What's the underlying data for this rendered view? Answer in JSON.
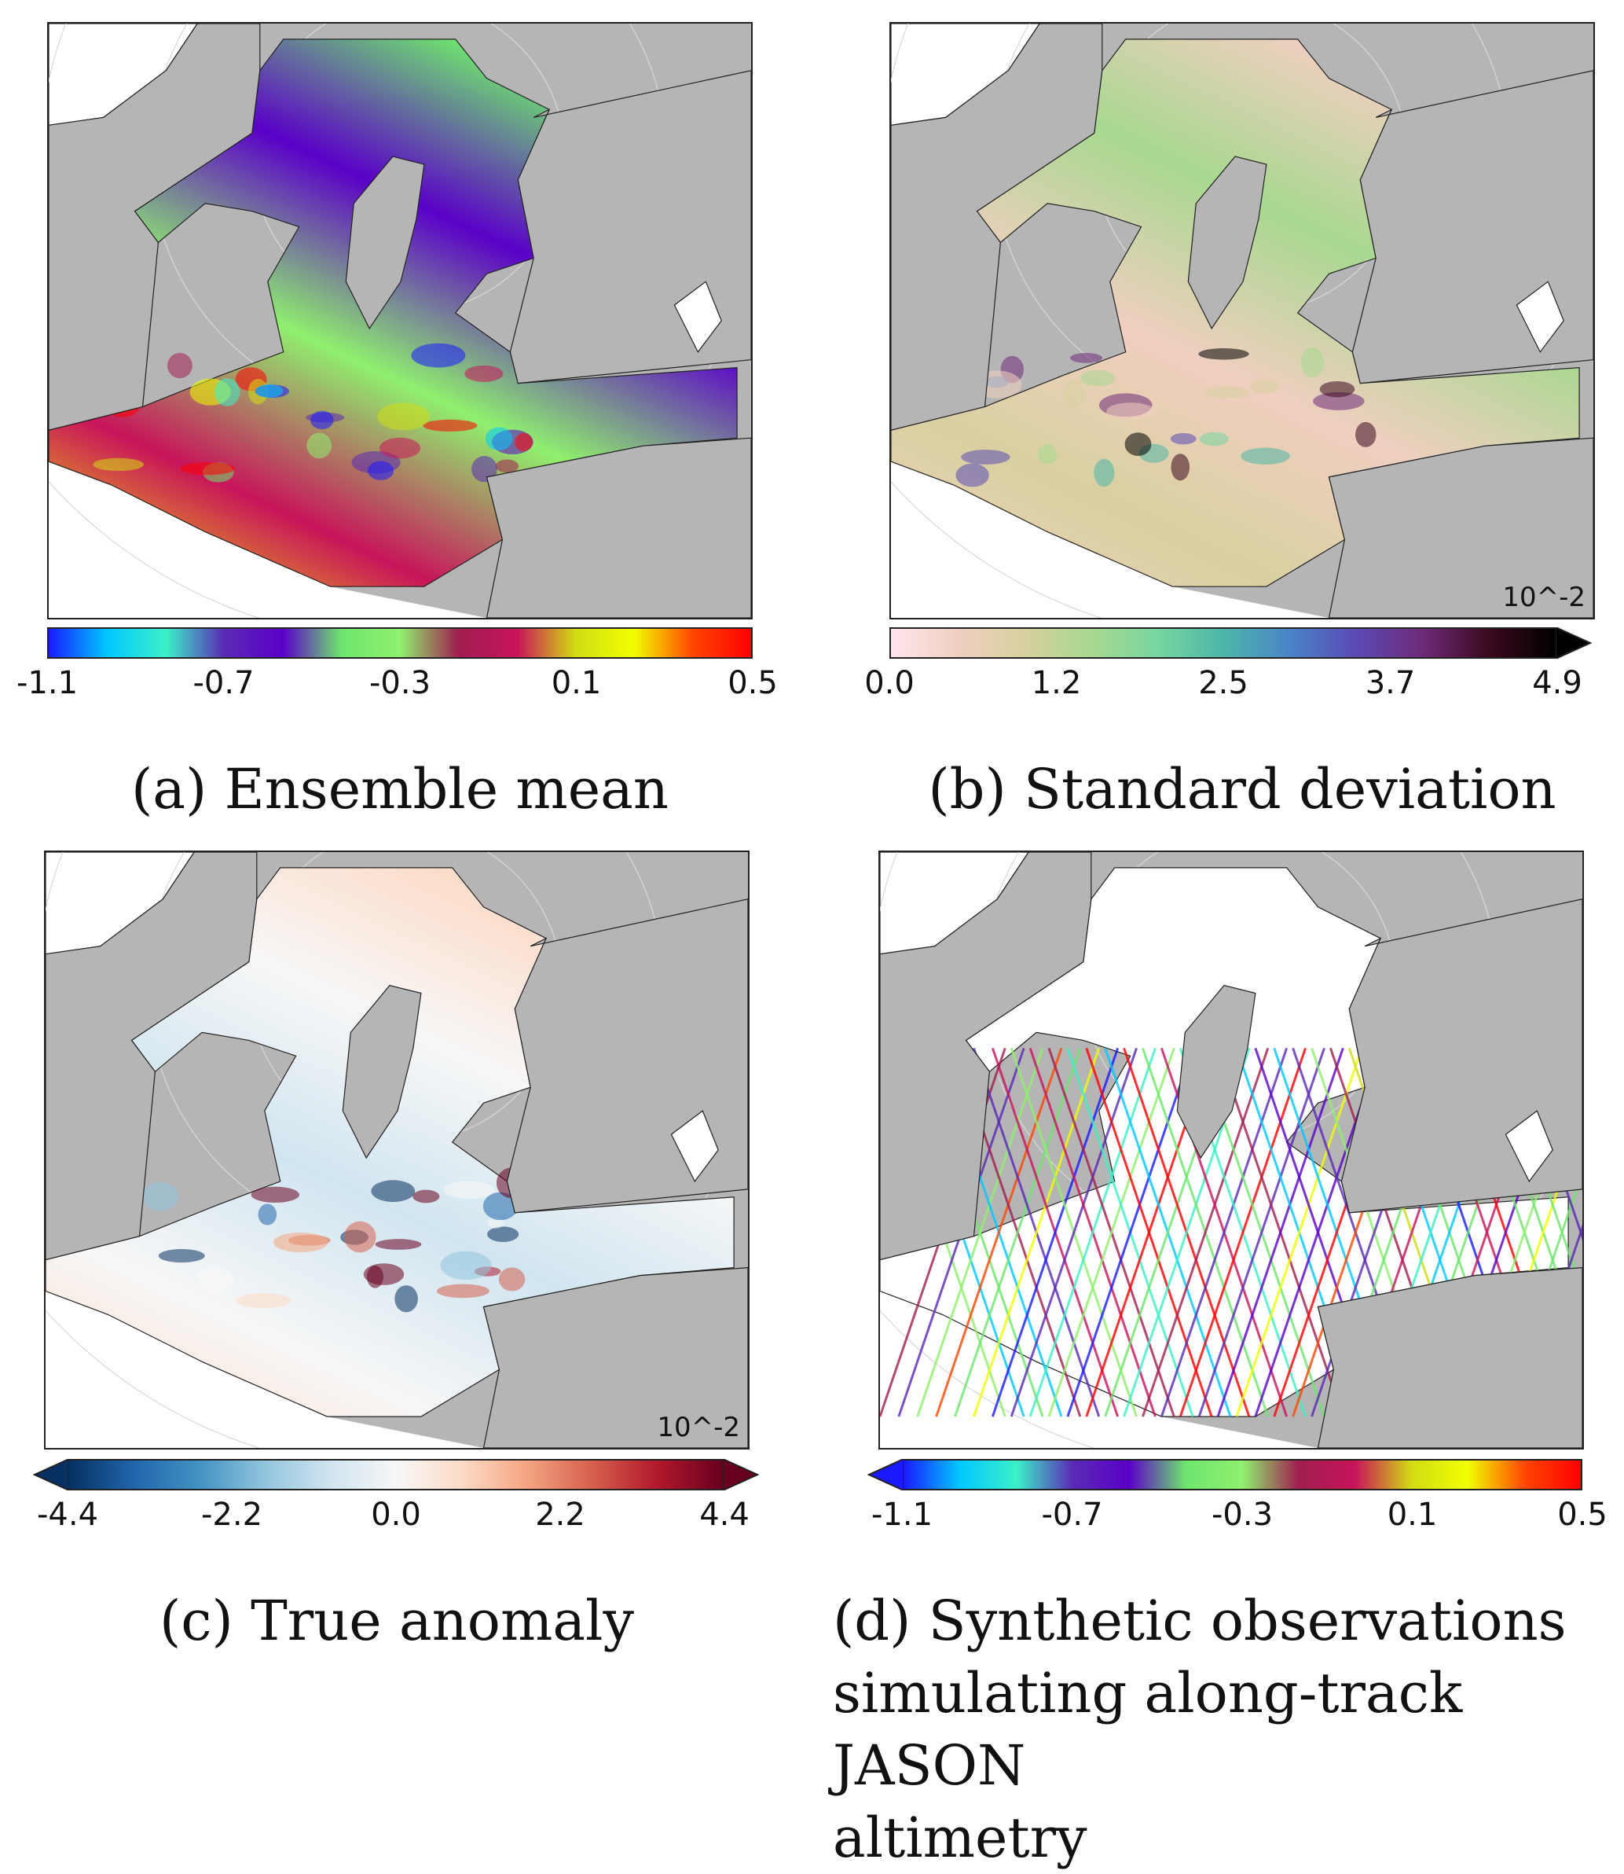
{
  "panels": [
    {
      "id": "a",
      "caption": "(a) Ensemble mean",
      "scale_note": "",
      "colormap": "gist_ncar_like",
      "colors": [
        "#1a1aff",
        "#00c8ff",
        "#3cf0c8",
        "#5a2ab4",
        "#5a00c8",
        "#6ee66e",
        "#8ff06e",
        "#a01e50",
        "#c8145a",
        "#d2dc14",
        "#f0ff00",
        "#ff4600",
        "#ff0000"
      ],
      "extend": "neither",
      "ticks": [
        "-1.1",
        "-0.7",
        "-0.3",
        "0.1",
        "0.5"
      ]
    },
    {
      "id": "b",
      "caption": "(b) Standard deviation",
      "scale_note": "10^-2",
      "colormap": "cubehelix_like",
      "colors": [
        "#ffe6ee",
        "#f0cfc0",
        "#d8d0a0",
        "#a8d890",
        "#78d6a0",
        "#4cb6a8",
        "#4a84c8",
        "#5a4ab4",
        "#6e2a78",
        "#3a0a1e",
        "#000000"
      ],
      "extend": "max",
      "ticks": [
        "0.0",
        "1.2",
        "2.5",
        "3.7",
        "4.9"
      ]
    },
    {
      "id": "c",
      "caption": "(c) True anomaly",
      "scale_note": "10^-2",
      "colormap": "RdBu_r",
      "colors": [
        "#053061",
        "#2166ac",
        "#4393c3",
        "#92c5de",
        "#d1e5f0",
        "#f7f7f7",
        "#fddbc7",
        "#f4a582",
        "#d6604d",
        "#b2182b",
        "#67001f"
      ],
      "extend": "both",
      "ticks": [
        "-4.4",
        "-2.2",
        "0.0",
        "2.2",
        "4.4"
      ]
    },
    {
      "id": "d",
      "caption": "(d) Synthetic observations simulating along-track JASON altimetry",
      "caption_lines": [
        "(d) Synthetic observations",
        "simulating along-track JASON",
        "altimetry"
      ],
      "scale_note": "",
      "colormap": "gist_ncar_like",
      "colors": [
        "#1a1aff",
        "#00c8ff",
        "#3cf0c8",
        "#5a2ab4",
        "#5a00c8",
        "#6ee66e",
        "#8ff06e",
        "#a01e50",
        "#c8145a",
        "#d2dc14",
        "#f0ff00",
        "#ff4600",
        "#ff0000"
      ],
      "extend": "min",
      "ticks": [
        "-1.1",
        "-0.7",
        "-0.3",
        "0.1",
        "0.5"
      ]
    }
  ],
  "style": {
    "land": "#b5b5b5",
    "ocean_white": "#ffffff",
    "coastline": "#222222",
    "grid": "#cccccc"
  }
}
